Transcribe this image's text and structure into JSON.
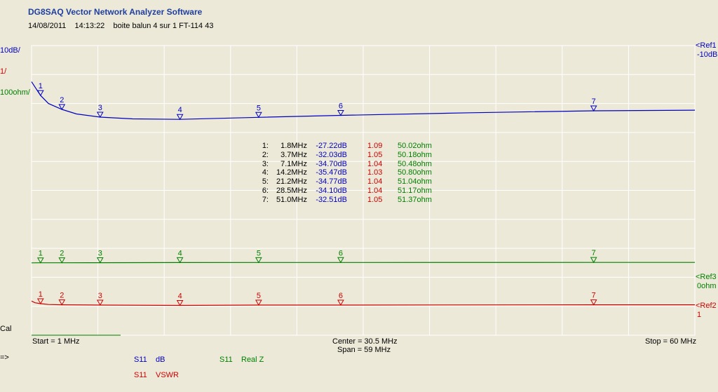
{
  "header": {
    "app_title": "DG8SAQ Vector Network Analyzer Software",
    "date": "14/08/2011",
    "time": "14:13:22",
    "description": "boite balun 4 sur 1 FT-114 43"
  },
  "scales": {
    "db_scale": "10dB/",
    "vswr_scale": "1/",
    "realz_scale": "100ohm/",
    "ref1_label": "<Ref1",
    "ref1_value": "-10dB",
    "ref3_label": "<Ref3",
    "ref3_value": "0ohm",
    "ref2_label": "<Ref2",
    "ref2_value": "1",
    "cal_label": "Cal"
  },
  "footer": {
    "start": "Start = 1 MHz",
    "center": "Center = 30.5 MHz",
    "span": "Span = 59 MHz",
    "stop": "Stop = 60 MHz",
    "arrow": "=>"
  },
  "legend": [
    {
      "param": "S11",
      "name": "dB",
      "color": "#0000c0"
    },
    {
      "param": "S11",
      "name": "Real Z",
      "color": "#008000"
    },
    {
      "param": "S11",
      "name": "VSWR",
      "color": "#d00000"
    }
  ],
  "marker_table": [
    {
      "idx": "1:",
      "freq": "1.8MHz",
      "db": "-27.22dB",
      "vswr": "1.09",
      "realz": "50.02ohm"
    },
    {
      "idx": "2:",
      "freq": "3.7MHz",
      "db": "-32.03dB",
      "vswr": "1.05",
      "realz": "50.18ohm"
    },
    {
      "idx": "3:",
      "freq": "7.1MHz",
      "db": "-34.70dB",
      "vswr": "1.04",
      "realz": "50.48ohm"
    },
    {
      "idx": "4:",
      "freq": "14.2MHz",
      "db": "-35.47dB",
      "vswr": "1.03",
      "realz": "50.80ohm"
    },
    {
      "idx": "5:",
      "freq": "21.2MHz",
      "db": "-34.77dB",
      "vswr": "1.04",
      "realz": "51.04ohm"
    },
    {
      "idx": "6:",
      "freq": "28.5MHz",
      "db": "-34.10dB",
      "vswr": "1.04",
      "realz": "51.17ohm"
    },
    {
      "idx": "7:",
      "freq": "51.0MHz",
      "db": "-32.51dB",
      "vswr": "1.05",
      "realz": "51.37ohm"
    }
  ],
  "colors": {
    "db": "#0000c0",
    "vswr": "#d00000",
    "realz": "#008000",
    "grid": "#ffffff",
    "background": "#ece9d8"
  },
  "chart_data": {
    "type": "line",
    "x_unit": "MHz",
    "xlim": [
      1,
      60
    ],
    "grid": true,
    "marker_labels": [
      "1",
      "2",
      "3",
      "4",
      "5",
      "6",
      "7"
    ],
    "series": [
      {
        "name": "S11 dB",
        "color": "#0000c0",
        "ref": -10,
        "scale_per_div": 10,
        "x": [
          1.0,
          1.8,
          2.5,
          3.7,
          5.0,
          7.1,
          10.0,
          14.2,
          21.2,
          28.5,
          40.0,
          51.0,
          60.0
        ],
        "y": [
          -22.5,
          -27.22,
          -30.0,
          -32.03,
          -33.6,
          -34.7,
          -35.3,
          -35.47,
          -34.77,
          -34.1,
          -33.2,
          -32.51,
          -32.3
        ],
        "markers_x": [
          1.8,
          3.7,
          7.1,
          14.2,
          21.2,
          28.5,
          51.0
        ],
        "markers_y": [
          -27.22,
          -32.03,
          -34.7,
          -35.47,
          -34.77,
          -34.1,
          -32.51
        ]
      },
      {
        "name": "S11 Real Z",
        "color": "#008000",
        "ref": 0,
        "scale_per_div": 100,
        "x": [
          1.0,
          1.8,
          3.7,
          7.1,
          14.2,
          21.2,
          28.5,
          51.0,
          60.0
        ],
        "y": [
          50.0,
          50.02,
          50.18,
          50.48,
          50.8,
          51.04,
          51.17,
          51.37,
          51.45
        ],
        "markers_x": [
          1.8,
          3.7,
          7.1,
          14.2,
          21.2,
          28.5,
          51.0
        ],
        "markers_y": [
          50.02,
          50.18,
          50.48,
          50.8,
          51.04,
          51.17,
          51.37
        ]
      },
      {
        "name": "S11 VSWR",
        "color": "#d00000",
        "ref": 1,
        "scale_per_div": 1,
        "x": [
          1.0,
          1.3,
          1.8,
          2.5,
          3.7,
          7.1,
          14.2,
          21.2,
          28.5,
          51.0,
          60.0
        ],
        "y": [
          1.18,
          1.12,
          1.09,
          1.06,
          1.05,
          1.04,
          1.03,
          1.04,
          1.04,
          1.05,
          1.05
        ],
        "markers_x": [
          1.8,
          3.7,
          7.1,
          14.2,
          21.2,
          28.5,
          51.0
        ],
        "markers_y": [
          1.09,
          1.05,
          1.04,
          1.03,
          1.04,
          1.04,
          1.05
        ]
      }
    ]
  }
}
